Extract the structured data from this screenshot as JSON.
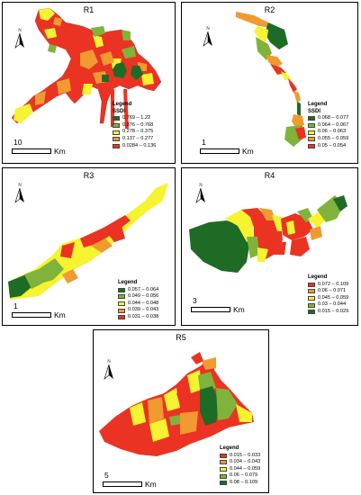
{
  "colors": {
    "darkgreen": "#1e6b25",
    "lightgreen": "#7fb33b",
    "yellow": "#f6f330",
    "orange": "#f19a30",
    "red": "#ea3323"
  },
  "north_label": "N",
  "panels": [
    {
      "id": "R1",
      "title": "R1",
      "legend_title": "Legend",
      "legend_subtitle": "SSDI",
      "legend": [
        {
          "label": "0.769 – 1.22",
          "color": "#1e6b25"
        },
        {
          "label": "0.376 – 0.768",
          "color": "#7fb33b"
        },
        {
          "label": "0.278 – 0.375",
          "color": "#f6f330"
        },
        {
          "label": "0.137 – 0.277",
          "color": "#f19a30"
        },
        {
          "label": "0.0284 – 0.136",
          "color": "#ea3323"
        }
      ],
      "scale_value": "10",
      "scale_unit": "Km"
    },
    {
      "id": "R2",
      "title": "R2",
      "legend_title": "Legend",
      "legend_subtitle": "SSDI",
      "legend": [
        {
          "label": "0.068 – 0.077",
          "color": "#1e6b25"
        },
        {
          "label": "0.064 – 0.067",
          "color": "#7fb33b"
        },
        {
          "label": "0.06 – 0.063",
          "color": "#f6f330"
        },
        {
          "label": "0.055 – 0.059",
          "color": "#f19a30"
        },
        {
          "label": "0.05 – 0.054",
          "color": "#ea3323"
        }
      ],
      "scale_value": "1",
      "scale_unit": "Km"
    },
    {
      "id": "R3",
      "title": "R3",
      "legend_title": "Legend",
      "legend_subtitle": "",
      "legend": [
        {
          "label": "0.057 – 0.064",
          "color": "#1e6b25"
        },
        {
          "label": "0.049 – 0.056",
          "color": "#7fb33b"
        },
        {
          "label": "0.044 – 0.048",
          "color": "#f6f330"
        },
        {
          "label": "0.039 – 0.043",
          "color": "#f19a30"
        },
        {
          "label": "0.031 – 0.038",
          "color": "#ea3323"
        }
      ],
      "scale_value": "1",
      "scale_unit": "Km"
    },
    {
      "id": "R4",
      "title": "R4",
      "legend_title": "Legend",
      "legend_subtitle": "",
      "legend": [
        {
          "label": "0.072 – 0.109",
          "color": "#ea3323"
        },
        {
          "label": "0.06 – 0.071",
          "color": "#f19a30"
        },
        {
          "label": "0.045 – 0.059",
          "color": "#f6f330"
        },
        {
          "label": "0.03 – 0.044",
          "color": "#7fb33b"
        },
        {
          "label": "0.015 – 0.029",
          "color": "#1e6b25"
        }
      ],
      "scale_value": "3",
      "scale_unit": "Km"
    },
    {
      "id": "R5",
      "title": "R5",
      "legend_title": "Legend",
      "legend_subtitle": "",
      "legend": [
        {
          "label": "0.015 – 0.033",
          "color": "#ea3323"
        },
        {
          "label": "0.034 – 0.043",
          "color": "#f19a30"
        },
        {
          "label": "0.044 – 0.059",
          "color": "#f6f330"
        },
        {
          "label": "0.06 – 0.079",
          "color": "#7fb33b"
        },
        {
          "label": "0.08 – 0.109",
          "color": "#1e6b25"
        }
      ],
      "scale_value": "5",
      "scale_unit": "Km"
    }
  ]
}
